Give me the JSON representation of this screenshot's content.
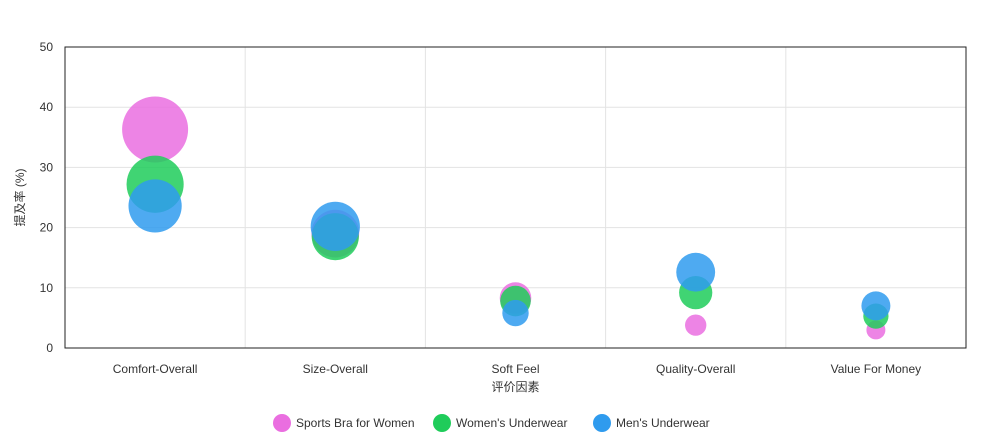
{
  "chart_data": {
    "type": "scatter",
    "subtype": "bubble",
    "title": "",
    "xlabel": "评价因素",
    "ylabel": "提及率 (%)",
    "categories": [
      "Comfort-Overall",
      "Size-Overall",
      "Soft Feel",
      "Quality-Overall",
      "Value For Money"
    ],
    "ylim": [
      0,
      50
    ],
    "yticks": [
      0,
      10,
      20,
      30,
      40,
      50
    ],
    "grid": true,
    "legend_position": "bottom",
    "series": [
      {
        "name": "Sports Bra for Women",
        "color": "#ea6ee0",
        "values": [
          36.3,
          19.0,
          8.3,
          3.8,
          3.0
        ],
        "bubble_size": [
          36.3,
          19.0,
          8.3,
          3.8,
          3.0
        ]
      },
      {
        "name": "Women's Underwear",
        "color": "#1fcc5a",
        "values": [
          27.2,
          18.5,
          7.8,
          9.2,
          5.3
        ],
        "bubble_size": [
          27.2,
          18.5,
          7.8,
          9.2,
          5.3
        ]
      },
      {
        "name": "Men's Underwear",
        "color": "#2f9bee",
        "values": [
          23.6,
          20.2,
          5.8,
          12.6,
          7.0
        ],
        "bubble_size": [
          23.6,
          20.2,
          5.8,
          12.6,
          7.0
        ]
      }
    ]
  }
}
